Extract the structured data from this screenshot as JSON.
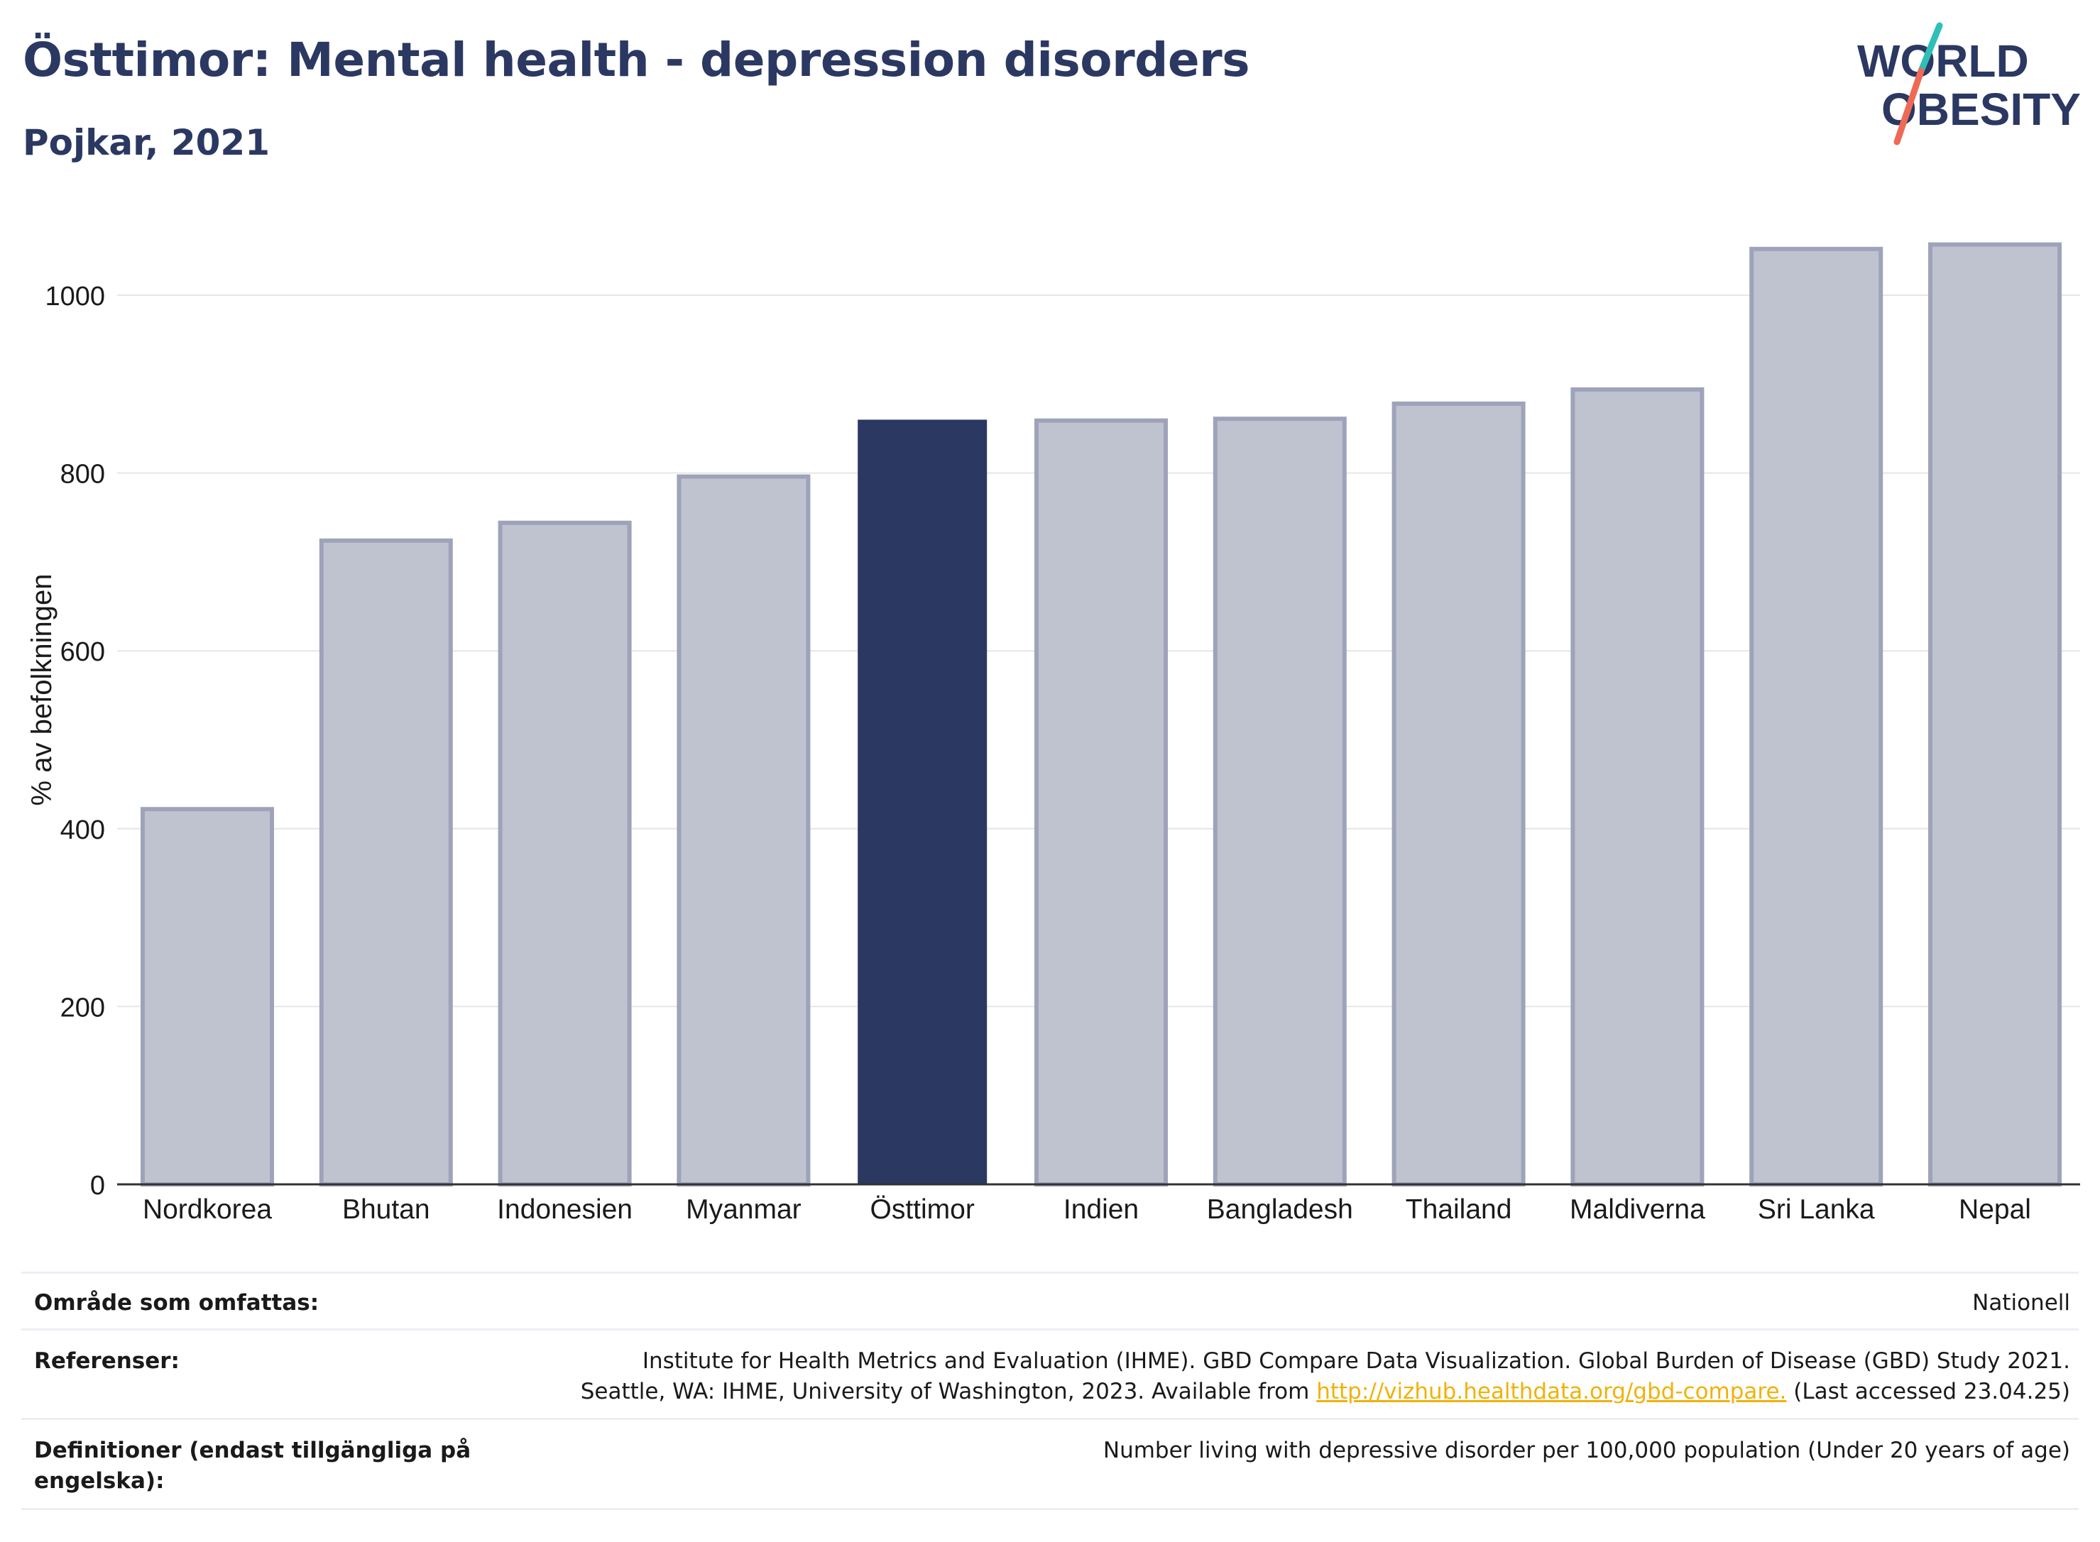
{
  "header": {
    "title": "Östtimor: Mental health - depression disorders",
    "subtitle": "Pojkar, 2021"
  },
  "logo": {
    "line1": "WORLD",
    "line2": "OBESITY",
    "colors": {
      "text": "#2b3862",
      "teal": "#2fbfb7",
      "coral": "#ee6a55"
    }
  },
  "chart_data": {
    "type": "bar",
    "categories": [
      "Nordkorea",
      "Bhutan",
      "Indonesien",
      "Myanmar",
      "Östtimor",
      "Indien",
      "Bangladesh",
      "Thailand",
      "Maldiverna",
      "Sri Lanka",
      "Nepal"
    ],
    "values": [
      422,
      724,
      744,
      796,
      860,
      859,
      861,
      878,
      894,
      1052,
      1057
    ],
    "highlight": "Östtimor",
    "ylabel": "% av befolkningen",
    "xlabel": "",
    "ylim": [
      0,
      1100
    ],
    "yticks": [
      0,
      200,
      400,
      600,
      800,
      1000
    ],
    "grid": true,
    "colors": {
      "bar": "#bfc3cf",
      "bar_border": "#9ea3ba",
      "highlight": "#2b3862",
      "grid": "#e6e6e6",
      "axis": "#333333"
    }
  },
  "meta": {
    "area_label": "Område som omfattas:",
    "area_value": "Nationell",
    "refs_label": "Referenser:",
    "refs_line1": "Institute for Health Metrics and Evaluation (IHME). GBD Compare Data Visualization. Global Burden of Disease (GBD) Study 2021.",
    "refs_line2_pre": "Seattle, WA: IHME, University of Washington, 2023. Available from ",
    "refs_link": "http://vizhub.healthdata.org/gbd-compare.",
    "refs_line2_post": " (Last accessed 23.04.25)",
    "defs_label": "Definitioner (endast tillgängliga på engelska):",
    "defs_value": "Number living with depressive disorder per 100,000 population (Under 20 years of age)"
  }
}
